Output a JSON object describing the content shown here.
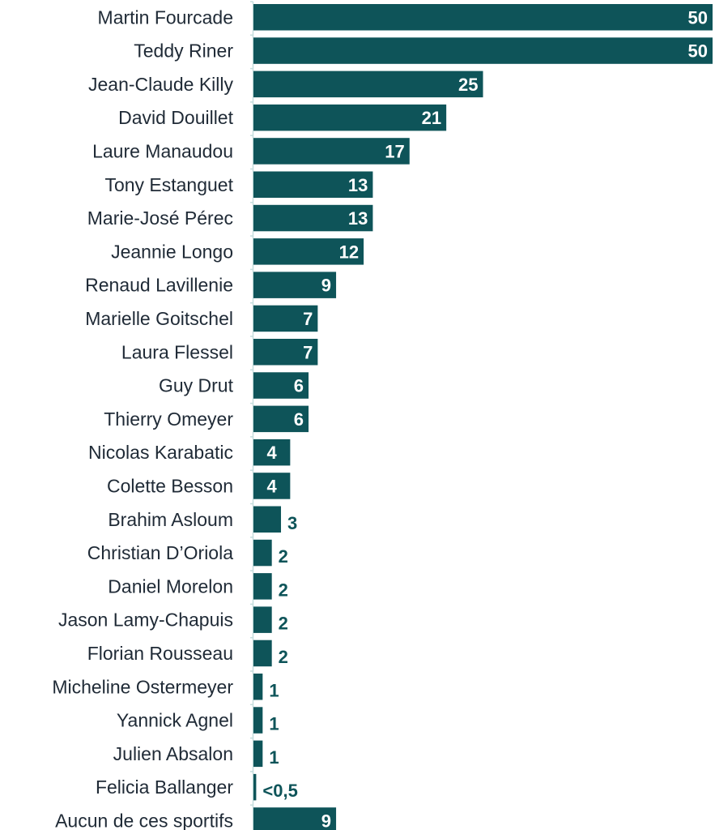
{
  "chart_data": {
    "type": "bar",
    "orientation": "horizontal",
    "categories": [
      "Martin Fourcade",
      "Teddy Riner",
      "Jean-Claude Killy",
      "David Douillet",
      "Laure Manaudou",
      "Tony Estanguet",
      "Marie-José Pérec",
      "Jeannie Longo",
      "Renaud Lavillenie",
      "Marielle Goitschel",
      "Laura Flessel",
      "Guy Drut",
      "Thierry Omeyer",
      "Nicolas Karabatic",
      "Colette Besson",
      "Brahim Asloum",
      "Christian D’Oriola",
      "Daniel Morelon",
      "Jason Lamy-Chapuis",
      "Florian Rousseau",
      "Micheline Ostermeyer",
      "Yannick Agnel",
      "Julien Absalon",
      "Felicia Ballanger",
      "Aucun de ces sportifs"
    ],
    "values": [
      50,
      50,
      25,
      21,
      17,
      13,
      13,
      12,
      9,
      7,
      7,
      6,
      6,
      4,
      4,
      3,
      2,
      2,
      2,
      2,
      1,
      1,
      1,
      0.3,
      9
    ],
    "value_labels": [
      "50",
      "50",
      "25",
      "21",
      "17",
      "13",
      "13",
      "12",
      "9",
      "7",
      "7",
      "6",
      "6",
      "4",
      "4",
      "3",
      "2",
      "2",
      "2",
      "2",
      "1",
      "1",
      "1",
      "<0,5",
      "9"
    ],
    "title": "",
    "xlabel": "",
    "ylabel": "",
    "xlim": [
      0,
      50
    ],
    "grid": false,
    "legend": "none",
    "colors": {
      "bar": "#0e5459",
      "label_inside": "#ffffff",
      "label_outside": "#0e5459",
      "axis": "#c5dede"
    }
  }
}
